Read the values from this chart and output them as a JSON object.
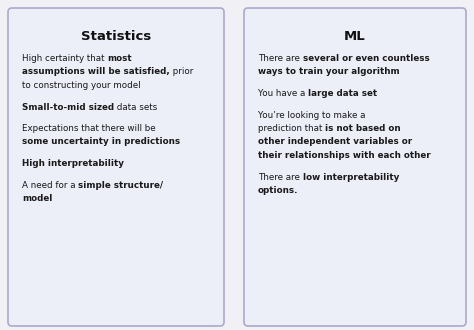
{
  "bg_color": "#f0f0f5",
  "card_bg": "#eceef8",
  "card_border": "#aaaacc",
  "title_color": "#111111",
  "text_color": "#1a1a1a",
  "figsize": [
    4.74,
    3.3
  ],
  "dpi": 100,
  "left_title": "Statistics",
  "right_title": "ML",
  "left_lines": [
    [
      {
        "t": "High certainty that ",
        "b": false
      },
      {
        "t": "most",
        "b": true
      }
    ],
    [
      {
        "t": "assumptions will be satisfied,",
        "b": true
      },
      {
        "t": " prior",
        "b": false
      }
    ],
    [
      {
        "t": "to constructing your model",
        "b": false
      }
    ],
    [],
    [
      {
        "t": "Small-to-mid sized",
        "b": true
      },
      {
        "t": " data sets",
        "b": false
      }
    ],
    [],
    [
      {
        "t": "Expectations that there will be",
        "b": false
      }
    ],
    [
      {
        "t": "some uncertainty in predictions",
        "b": true
      }
    ],
    [],
    [
      {
        "t": "High interpretability",
        "b": true
      }
    ],
    [],
    [
      {
        "t": "A need for a ",
        "b": false
      },
      {
        "t": "simple structure/",
        "b": true
      }
    ],
    [
      {
        "t": "model",
        "b": true
      }
    ]
  ],
  "right_lines": [
    [
      {
        "t": "There are ",
        "b": false
      },
      {
        "t": "several or even countless",
        "b": true
      }
    ],
    [
      {
        "t": "ways to train your algorithm",
        "b": true
      }
    ],
    [],
    [
      {
        "t": "You have a ",
        "b": false
      },
      {
        "t": "large data set",
        "b": true
      }
    ],
    [],
    [
      {
        "t": "You’re looking to make a",
        "b": false
      }
    ],
    [
      {
        "t": "prediction that ",
        "b": false
      },
      {
        "t": "is not based on",
        "b": true
      }
    ],
    [
      {
        "t": "other independent variables or",
        "b": true
      }
    ],
    [
      {
        "t": "their relationships with each other",
        "b": true
      }
    ],
    [],
    [
      {
        "t": "There are ",
        "b": false
      },
      {
        "t": "low interpretability",
        "b": true
      }
    ],
    [
      {
        "t": "options.",
        "b": true
      }
    ]
  ]
}
